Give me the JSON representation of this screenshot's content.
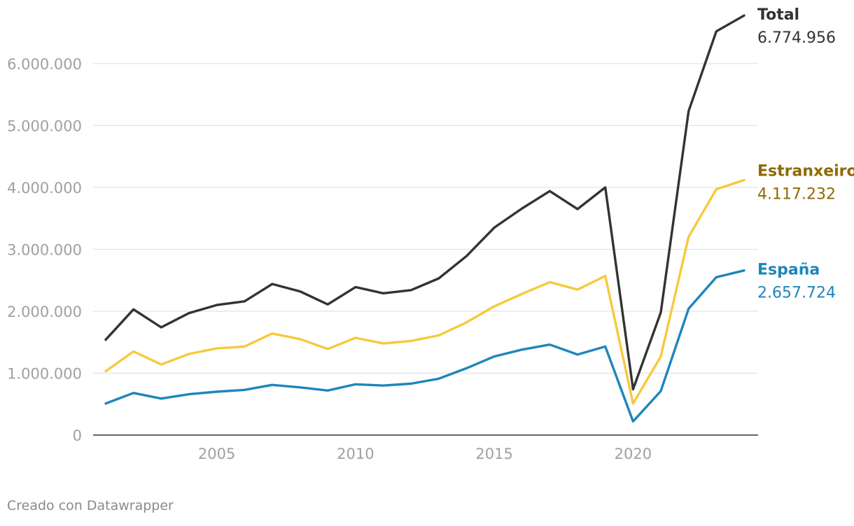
{
  "chart_data": {
    "type": "line",
    "title": "",
    "xlabel": "",
    "ylabel": "",
    "x": [
      2001,
      2002,
      2003,
      2004,
      2005,
      2006,
      2007,
      2008,
      2009,
      2010,
      2011,
      2012,
      2013,
      2014,
      2015,
      2016,
      2017,
      2018,
      2019,
      2020,
      2021,
      2022,
      2023,
      2024
    ],
    "xlim": [
      2001,
      2024
    ],
    "ylim": [
      0,
      6800000
    ],
    "y_ticks": [
      0,
      1000000,
      2000000,
      3000000,
      4000000,
      5000000,
      6000000
    ],
    "y_tick_labels": [
      "0",
      "1.000.000",
      "2.000.000",
      "3.000.000",
      "4.000.000",
      "5.000.000",
      "6.000.000"
    ],
    "x_ticks": [
      2005,
      2010,
      2015,
      2020
    ],
    "x_tick_labels": [
      "2005",
      "2010",
      "2015",
      "2020"
    ],
    "grid": true,
    "series": [
      {
        "name": "Total",
        "end_label": "6.774.956",
        "color": "#333333",
        "label_color": "#333333",
        "values": [
          1540000,
          2030000,
          1740000,
          1970000,
          2100000,
          2160000,
          2440000,
          2320000,
          2110000,
          2390000,
          2290000,
          2340000,
          2530000,
          2890000,
          3350000,
          3660000,
          3940000,
          3650000,
          4000000,
          740000,
          1980000,
          5230000,
          6520000,
          6774956
        ]
      },
      {
        "name": "Estranxeiro",
        "end_label": "4.117.232",
        "color": "#f7c93c",
        "label_color": "#8f6a00",
        "values": [
          1030000,
          1350000,
          1140000,
          1310000,
          1400000,
          1430000,
          1640000,
          1550000,
          1390000,
          1570000,
          1480000,
          1520000,
          1610000,
          1820000,
          2080000,
          2280000,
          2470000,
          2350000,
          2570000,
          510000,
          1270000,
          3200000,
          3970000,
          4117232
        ]
      },
      {
        "name": "España",
        "end_label": "2.657.724",
        "color": "#1d86bb",
        "label_color": "#1d86bb",
        "values": [
          510000,
          680000,
          590000,
          660000,
          700000,
          730000,
          810000,
          770000,
          720000,
          820000,
          800000,
          830000,
          910000,
          1080000,
          1270000,
          1380000,
          1460000,
          1300000,
          1430000,
          220000,
          710000,
          2040000,
          2550000,
          2657724
        ]
      }
    ]
  },
  "footer": {
    "credit": "Creado con Datawrapper"
  },
  "colors": {
    "gridline": "#dedede",
    "axis": "#333333",
    "tick_text": "#a0a0a0"
  }
}
